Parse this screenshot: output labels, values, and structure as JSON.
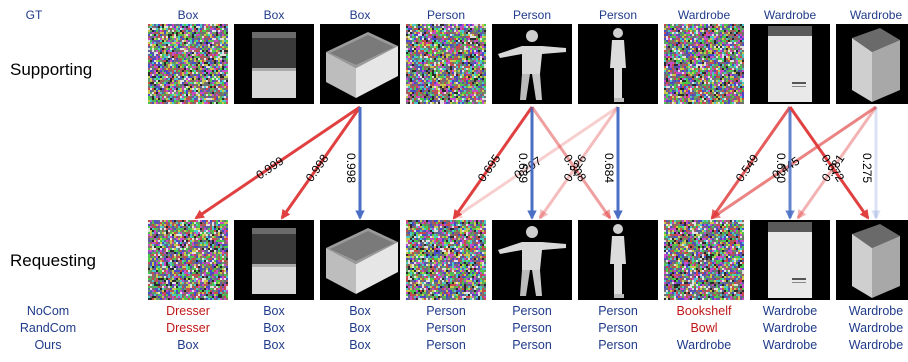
{
  "header": {
    "gt_label": "GT"
  },
  "columns": [
    {
      "gt": "Box",
      "image": "noise",
      "nocom": "Dresser",
      "randcom": "Dresser",
      "ours": "Box"
    },
    {
      "gt": "Box",
      "image": "box-depth-dark",
      "nocom": "Box",
      "randcom": "Box",
      "ours": "Box"
    },
    {
      "gt": "Box",
      "image": "box-3d",
      "nocom": "Box",
      "randcom": "Box",
      "ours": "Box"
    },
    {
      "gt": "Person",
      "image": "noise",
      "nocom": "Person",
      "randcom": "Person",
      "ours": "Person"
    },
    {
      "gt": "Person",
      "image": "person-tpose",
      "nocom": "Person",
      "randcom": "Person",
      "ours": "Person"
    },
    {
      "gt": "Person",
      "image": "person-standing",
      "nocom": "Person",
      "randcom": "Person",
      "ours": "Person"
    },
    {
      "gt": "Wardrobe",
      "image": "noise",
      "nocom": "Bookshelf",
      "randcom": "Bowl",
      "ours": "Wardrobe"
    },
    {
      "gt": "Wardrobe",
      "image": "wardrobe-front",
      "nocom": "Wardrobe",
      "randcom": "Wardrobe",
      "ours": "Wardrobe"
    },
    {
      "gt": "Wardrobe",
      "image": "wardrobe-angled",
      "nocom": "Wardrobe",
      "randcom": "Wardrobe",
      "ours": "Wardrobe"
    }
  ],
  "rows": {
    "supporting": "Supporting",
    "requesting": "Requesting"
  },
  "legend": {
    "nocom": "NoCom",
    "randcom": "RandCom",
    "ours": "Ours"
  },
  "wrong_predictions": [
    [
      0,
      "nocom"
    ],
    [
      0,
      "randcom"
    ],
    [
      6,
      "nocom"
    ],
    [
      6,
      "randcom"
    ]
  ],
  "colors": {
    "header_text": "#1f3b8a",
    "wrong_text": "#c01818",
    "edge_red": "#e04040",
    "edge_blue": "#4a6fc4"
  },
  "edges": [
    {
      "from": 2,
      "to": 0,
      "weight": "0.999",
      "color": "red",
      "alpha": 1.0
    },
    {
      "from": 2,
      "to": 1,
      "weight": "0.998",
      "color": "red",
      "alpha": 1.0
    },
    {
      "from": 2,
      "to": 2,
      "weight": "0.998",
      "color": "blue",
      "alpha": 1.0
    },
    {
      "from": 4,
      "to": 3,
      "weight": "0.695",
      "color": "red",
      "alpha": 1.0
    },
    {
      "from": 5,
      "to": 3,
      "weight": "0.207",
      "color": "red",
      "alpha": 0.25
    },
    {
      "from": 4,
      "to": 4,
      "weight": "0.689",
      "color": "blue",
      "alpha": 1.0
    },
    {
      "from": 5,
      "to": 4,
      "weight": "0.226",
      "color": "red",
      "alpha": 0.35
    },
    {
      "from": 4,
      "to": 5,
      "weight": "0.308",
      "color": "red",
      "alpha": 0.5
    },
    {
      "from": 5,
      "to": 5,
      "weight": "0.684",
      "color": "blue",
      "alpha": 1.0
    },
    {
      "from": 7,
      "to": 6,
      "weight": "0.549",
      "color": "red",
      "alpha": 0.85
    },
    {
      "from": 8,
      "to": 6,
      "weight": "0.445",
      "color": "red",
      "alpha": 0.65
    },
    {
      "from": 7,
      "to": 7,
      "weight": "0.620",
      "color": "blue",
      "alpha": 0.85
    },
    {
      "from": 8,
      "to": 7,
      "weight": "0.281",
      "color": "red",
      "alpha": 0.4
    },
    {
      "from": 7,
      "to": 8,
      "weight": "0.672",
      "color": "red",
      "alpha": 1.0
    },
    {
      "from": 8,
      "to": 8,
      "weight": "0.275",
      "color": "blue",
      "alpha": 0.2
    }
  ]
}
